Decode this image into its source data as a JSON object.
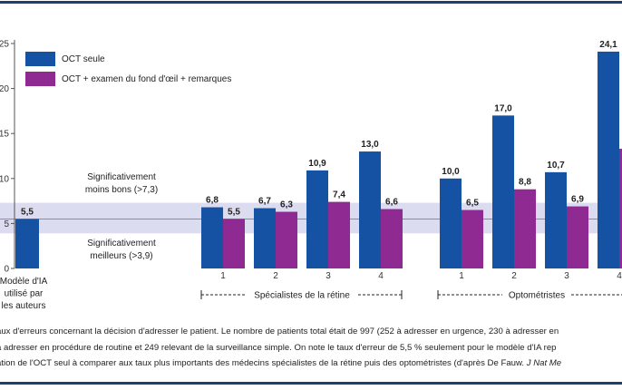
{
  "chart_data": {
    "type": "bar",
    "ylim": [
      0,
      25
    ],
    "yticks": [
      "0",
      "5",
      "10",
      "15",
      "20",
      "25"
    ],
    "legend_placement": "top-left",
    "colors": {
      "oct": "#1552a4",
      "fond": "#8f2a92",
      "band": "#dcdcf0",
      "line": "#8a8ab0",
      "axis": "#555555"
    },
    "series": [
      {
        "name": "OCT seule",
        "color_key": "oct"
      },
      {
        "name": "OCT + examen du fond d'œil + remarques",
        "color_key": "fond"
      }
    ],
    "ai_model": {
      "value": 5.5,
      "label": "5,5",
      "caption_lines": [
        "Modèle d'IA",
        "utilisé par",
        "les auteurs"
      ]
    },
    "groups": [
      {
        "name": "Spécialistes de la rétine",
        "categories": [
          "1",
          "2",
          "3",
          "4"
        ],
        "oct": [
          6.8,
          6.7,
          10.9,
          13.0
        ],
        "oct_labels": [
          "6,8",
          "6,7",
          "10,9",
          "13,0"
        ],
        "fond": [
          5.5,
          6.3,
          7.4,
          6.6
        ],
        "fond_labels": [
          "5,5",
          "6,3",
          "7,4",
          "6,6"
        ]
      },
      {
        "name": "Optométristes",
        "categories": [
          "1",
          "2",
          "3",
          "4"
        ],
        "oct": [
          10.0,
          17.0,
          10.7,
          24.1
        ],
        "oct_labels": [
          "10,0",
          "17,0",
          "10,7",
          "24,1"
        ],
        "fond": [
          6.5,
          8.8,
          6.9,
          13.3
        ],
        "fond_labels": [
          "6,5",
          "8,8",
          "6,9",
          ""
        ]
      }
    ],
    "band": {
      "low": 3.9,
      "high": 7.3,
      "reference": 5.5
    },
    "annotations": {
      "worse": [
        "Significativement",
        "moins bons (>7,3)"
      ],
      "better": [
        "Significativement",
        "meilleurs (>3,9)"
      ]
    }
  },
  "caption": {
    "line1": "aux d'erreurs concernant la décision d'adresser le patient. Le nombre de patients total était de 997 (252 à adresser en urgence, 230 à adresser en",
    "line2": "à adresser en procédure de routine et 249 relevant de la surveillance simple. On note le taux d'erreur de 5,5 % seulement pour le modèle d'IA rep",
    "line3_main": "ation de l'OCT seul à comparer aux taux plus importants des médecins spécialistes de la rétine puis des optométristes (d'après De Fauw.",
    "line3_source": "J Nat Me"
  }
}
